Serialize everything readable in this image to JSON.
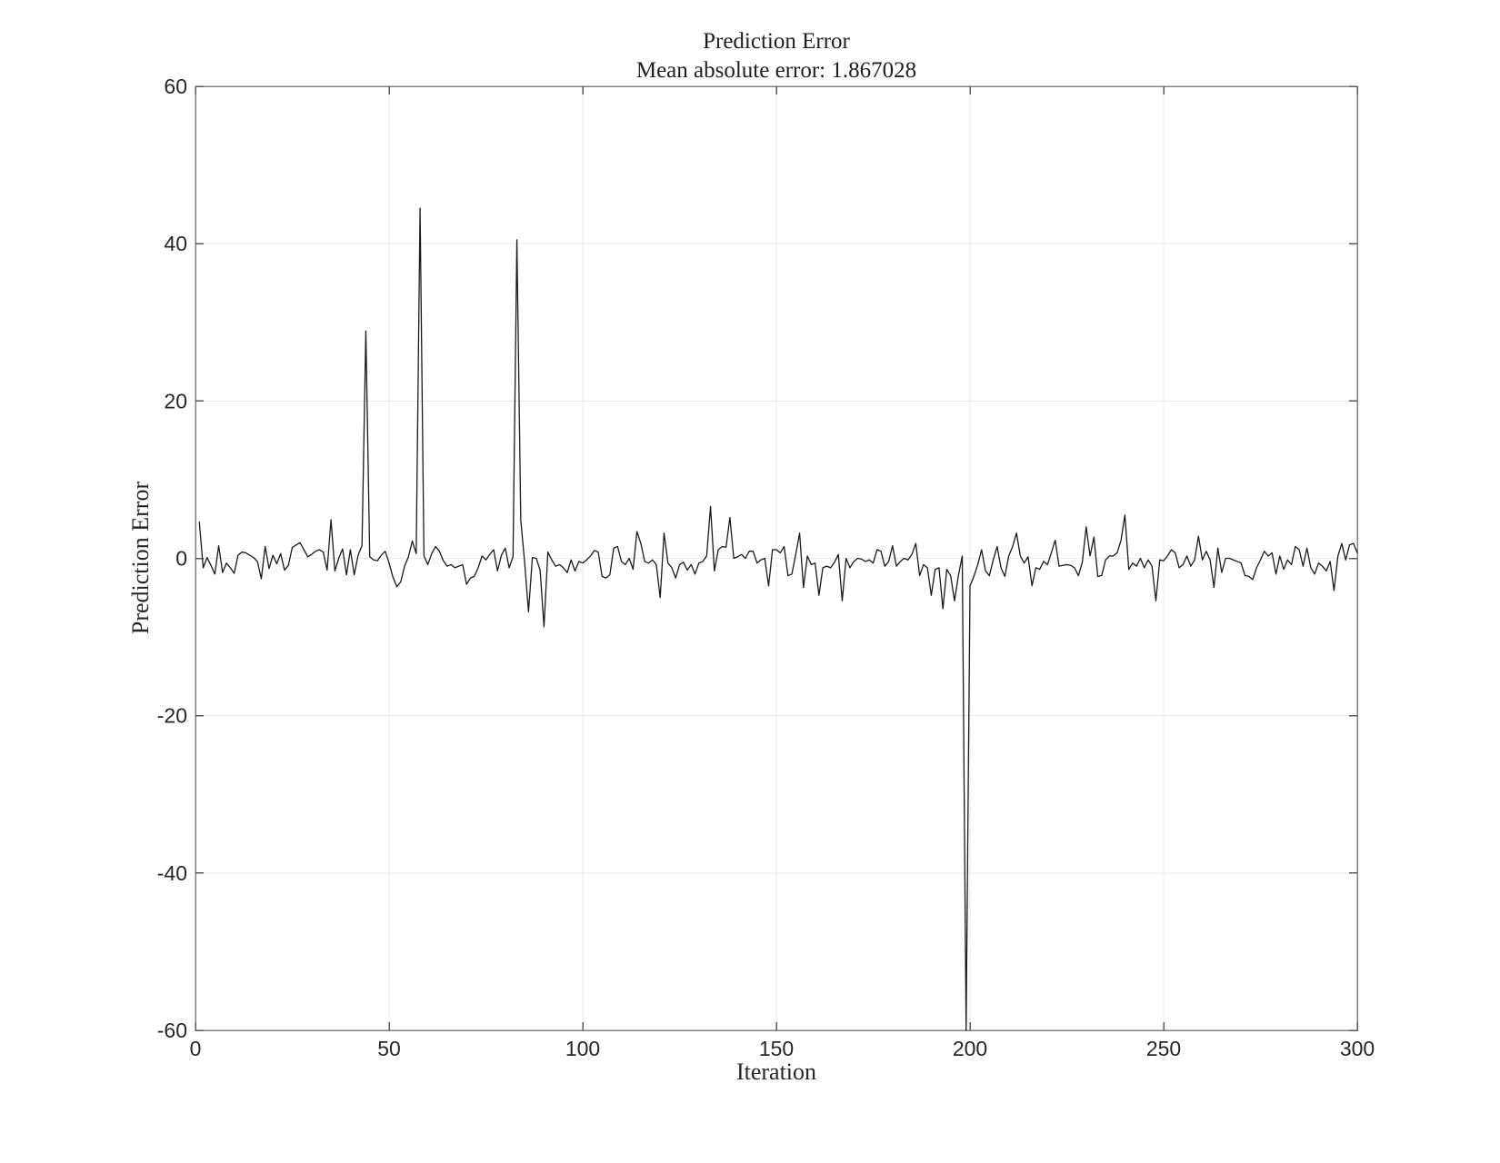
{
  "page": {
    "background": "#ffffff"
  },
  "chart_data": {
    "type": "line",
    "title": "Prediction Error",
    "subtitle": "Mean absolute error: 1.867028",
    "xlabel": "Iteration",
    "ylabel": "Prediction Error",
    "xlim": [
      0,
      300
    ],
    "ylim": [
      -60,
      60
    ],
    "x_ticks": [
      0,
      50,
      100,
      150,
      200,
      250,
      300
    ],
    "y_ticks": [
      -60,
      -40,
      -20,
      0,
      20,
      40,
      60
    ],
    "grid": true,
    "legend_position": "none",
    "colors": {
      "line": "#1a1a1a",
      "axis": "#828282",
      "tick": "#5a5a5a",
      "grid": "#ebebeb",
      "text": "#262626"
    },
    "x_start": 1,
    "x_step": 1,
    "values": [
      4.6,
      -1.2,
      0.1,
      -0.9,
      -2.0,
      1.6,
      -1.8,
      -0.6,
      -1.2,
      -1.9,
      0.4,
      0.8,
      0.7,
      0.4,
      0.1,
      -0.4,
      -2.6,
      1.5,
      -1.3,
      0.4,
      -0.7,
      0.6,
      -1.5,
      -0.9,
      1.4,
      1.7,
      2.0,
      1.1,
      0.2,
      0.5,
      0.9,
      1.1,
      0.8,
      -1.5,
      4.9,
      -1.6,
      0.0,
      1.2,
      -2.1,
      1.1,
      -2.1,
      0.4,
      1.6,
      28.9,
      0.2,
      -0.2,
      -0.3,
      0.4,
      0.9,
      -0.6,
      -2.4,
      -3.6,
      -3.0,
      -1.0,
      0.2,
      2.2,
      0.6,
      44.5,
      0.3,
      -0.8,
      0.6,
      1.5,
      0.9,
      -0.3,
      -1.0,
      -0.8,
      -1.2,
      -1.0,
      -0.8,
      -3.3,
      -2.5,
      -2.3,
      -1.2,
      0.3,
      -0.2,
      0.5,
      1.1,
      -1.6,
      0.4,
      1.3,
      -1.2,
      0.2,
      40.5,
      4.9,
      -0.5,
      -6.8,
      0.1,
      0.0,
      -1.5,
      -8.7,
      0.8,
      -0.2,
      -1.0,
      -0.8,
      -1.2,
      -1.8,
      -0.2,
      -1.6,
      -0.4,
      -0.6,
      -0.2,
      0.3,
      1.0,
      0.8,
      -2.3,
      -2.5,
      -2.1,
      1.3,
      1.5,
      -0.4,
      -0.8,
      0.0,
      -1.4,
      3.4,
      1.9,
      -0.4,
      -0.6,
      -0.2,
      -0.8,
      -5.0,
      3.2,
      -0.6,
      -1.2,
      -2.5,
      -0.8,
      -0.5,
      -1.5,
      -0.8,
      -2.0,
      -0.6,
      -0.4,
      0.3,
      6.6,
      -1.6,
      1.1,
      1.5,
      1.4,
      5.2,
      0.0,
      0.2,
      0.5,
      0.0,
      0.9,
      0.9,
      -0.6,
      -0.2,
      0.0,
      -3.5,
      1.1,
      1.1,
      0.7,
      1.5,
      -2.2,
      -2.0,
      0.5,
      3.2,
      -3.7,
      0.3,
      -0.8,
      -0.6,
      -4.7,
      -1.2,
      -1.0,
      -1.2,
      -0.5,
      0.5,
      -5.4,
      0.0,
      -1.2,
      -0.4,
      0.0,
      -0.1,
      -0.4,
      -0.2,
      -0.6,
      1.1,
      0.9,
      -1.0,
      -0.4,
      1.6,
      -1.0,
      -0.4,
      0.0,
      -0.2,
      0.5,
      1.9,
      -2.2,
      -0.8,
      -1.2,
      -4.7,
      -1.4,
      -1.2,
      -6.4,
      -1.4,
      -2.2,
      -5.4,
      -2.2,
      0.3,
      -60.0,
      -3.5,
      -2.3,
      -0.8,
      1.1,
      -1.6,
      -2.2,
      -0.2,
      1.5,
      -1.2,
      -2.3,
      0.3,
      1.5,
      3.2,
      0.3,
      -0.6,
      0.2,
      -3.5,
      -1.2,
      -1.4,
      -0.4,
      -0.8,
      0.7,
      2.3,
      -1.0,
      -0.9,
      -0.8,
      -0.9,
      -1.2,
      -2.2,
      -0.5,
      4.0,
      0.3,
      2.7,
      -2.3,
      -2.2,
      -0.2,
      0.3,
      0.3,
      0.7,
      2.3,
      5.5,
      -1.4,
      -0.6,
      -1.0,
      0.0,
      -1.2,
      -0.2,
      -1.0,
      -5.4,
      -0.2,
      -0.3,
      0.3,
      1.1,
      0.7,
      -1.2,
      -0.8,
      0.3,
      -1.0,
      -0.2,
      2.8,
      -0.2,
      0.9,
      -0.2,
      -3.7,
      1.3,
      -1.8,
      0.0,
      0.0,
      -0.2,
      -0.4,
      -0.6,
      -2.2,
      -2.3,
      -2.7,
      -1.2,
      -0.2,
      0.9,
      0.3,
      0.7,
      -2.0,
      0.3,
      -1.4,
      -0.2,
      -0.8,
      1.5,
      1.1,
      -1.0,
      1.3,
      -1.2,
      -2.0,
      -0.6,
      -1.0,
      -1.6,
      -0.4,
      -4.1,
      0.3,
      1.9,
      -0.2,
      1.7,
      1.9,
      0.7
    ]
  }
}
